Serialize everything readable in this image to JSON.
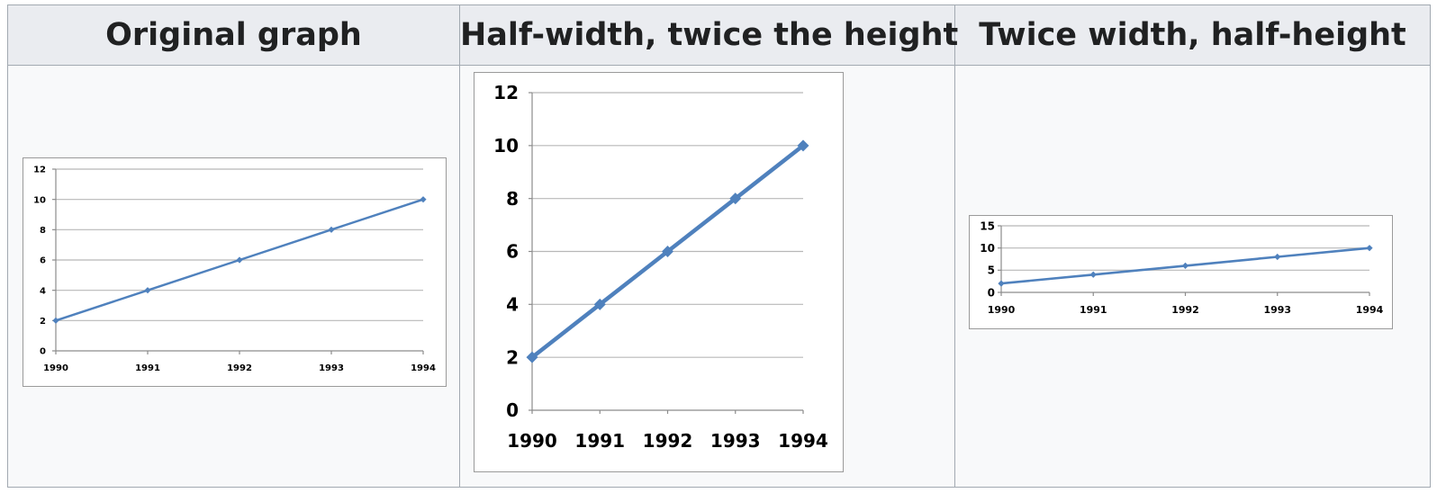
{
  "headers": [
    "Original graph",
    "Half-width, twice the height",
    "Twice width, half-height"
  ],
  "chart_data": [
    {
      "type": "line",
      "categories": [
        "1990",
        "1991",
        "1992",
        "1993",
        "1994"
      ],
      "values": [
        2,
        4,
        6,
        8,
        10
      ],
      "ylim": [
        0,
        12
      ],
      "yticks": [
        0,
        2,
        4,
        6,
        8,
        10,
        12
      ],
      "grid": true,
      "legend": "none",
      "series_color": "#4f81bd"
    },
    {
      "type": "line",
      "categories": [
        "1990",
        "1991",
        "1992",
        "1993",
        "1994"
      ],
      "values": [
        2,
        4,
        6,
        8,
        10
      ],
      "ylim": [
        0,
        12
      ],
      "yticks": [
        0,
        2,
        4,
        6,
        8,
        10,
        12
      ],
      "grid": true,
      "legend": "none",
      "series_color": "#4f81bd"
    },
    {
      "type": "line",
      "categories": [
        "1990",
        "1991",
        "1992",
        "1993",
        "1994"
      ],
      "values": [
        2,
        4,
        6,
        8,
        10
      ],
      "ylim": [
        0,
        15
      ],
      "yticks": [
        0,
        5,
        10,
        15
      ],
      "grid": true,
      "legend": "none",
      "series_color": "#4f81bd"
    }
  ]
}
